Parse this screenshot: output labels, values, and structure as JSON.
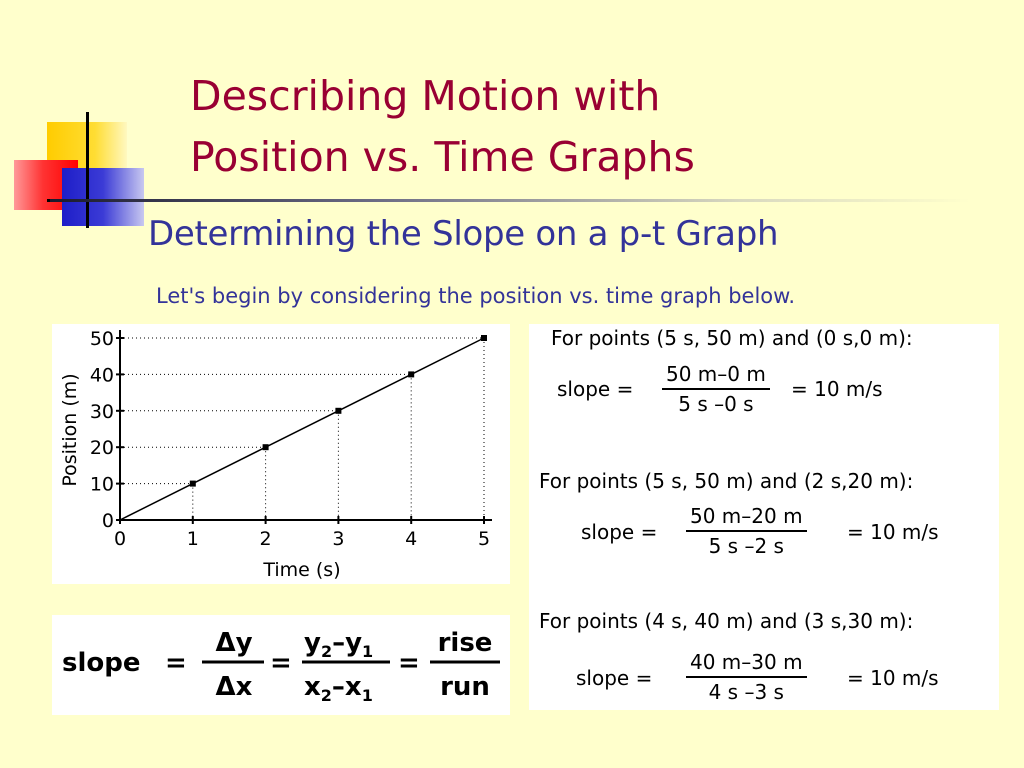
{
  "slide": {
    "title_line1": "Describing Motion with",
    "title_line2": "Position vs. Time Graphs",
    "subtitle": "Determining the Slope on a p-t Graph",
    "intro": "Let's begin by considering the position vs. time graph below.",
    "colors": {
      "background": "#ffffcc",
      "title": "#990033",
      "subtitle": "#333399"
    }
  },
  "chart_data": {
    "type": "line",
    "title": "",
    "xlabel": "Time (s)",
    "ylabel": "Position (m)",
    "xlim": [
      0,
      5
    ],
    "ylim": [
      0,
      50
    ],
    "xticks": [
      "0",
      "1",
      "2",
      "3",
      "4",
      "5"
    ],
    "yticks": [
      "0",
      "10",
      "20",
      "30",
      "40",
      "50"
    ],
    "grid": "dotted guides to marked points",
    "series": [
      {
        "x": [
          0,
          1,
          2,
          3,
          4,
          5
        ],
        "y": [
          0,
          10,
          20,
          30,
          40,
          50
        ]
      }
    ],
    "marked_points": [
      {
        "x": 1,
        "y": 10
      },
      {
        "x": 2,
        "y": 20
      },
      {
        "x": 3,
        "y": 30
      },
      {
        "x": 4,
        "y": 40
      },
      {
        "x": 5,
        "y": 50
      }
    ]
  },
  "formula": {
    "lhs": "slope",
    "eq": "=",
    "delta_num": "Δy",
    "delta_den": "Δx",
    "diff_num_a": "y",
    "diff_num_a_sub": "2",
    "diff_num_b": "y",
    "diff_num_b_sub": "1",
    "diff_den_a": "x",
    "diff_den_a_sub": "2",
    "diff_den_b": "x",
    "diff_den_b_sub": "1",
    "minus": "–",
    "rise": "rise",
    "run": "run"
  },
  "examples": [
    {
      "heading": "For points (5 s, 50 m) and (0 s,0 m):",
      "label": "slope =",
      "numerator": "50 m–0 m",
      "denominator": "5 s –0 s",
      "result": "= 10 m/s"
    },
    {
      "heading": "For points (5 s, 50 m) and (2 s,20 m):",
      "label": "slope =",
      "numerator": "50 m–20 m",
      "denominator": "5 s –2 s",
      "result": "= 10 m/s"
    },
    {
      "heading": "For points (4 s, 40 m) and (3 s,30 m):",
      "label": "slope =",
      "numerator": "40 m–30 m",
      "denominator": "4 s –3 s",
      "result": "= 10 m/s"
    }
  ]
}
